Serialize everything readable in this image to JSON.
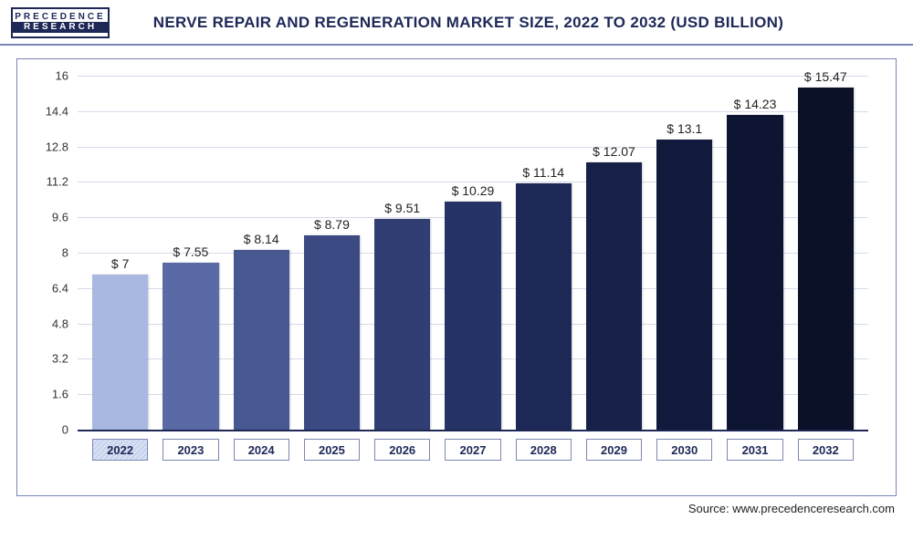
{
  "logo": {
    "top": "PRECEDENCE",
    "bottom": "RESEARCH"
  },
  "title": "NERVE REPAIR AND REGENERATION MARKET SIZE, 2022 TO 2032 (USD BILLION)",
  "source": "Source: www.precedenceresearch.com",
  "chart": {
    "type": "bar",
    "background_color": "#ffffff",
    "grid_color": "#d6dbe8",
    "axis_color": "#1d2857",
    "y": {
      "min": 0,
      "max": 16,
      "ticks": [
        0,
        1.6,
        3.2,
        4.8,
        6.4,
        8,
        9.6,
        11.2,
        12.8,
        14.4,
        16
      ],
      "label_fontsize": 13,
      "label_color": "#333333"
    },
    "bar_width_ratio": 0.78,
    "data_label_fontsize": 14,
    "data_label_color": "#222222",
    "x_box_border_color": "#7c88b4",
    "x_box_text_color": "#1d2857",
    "x_box_fontsize": 13,
    "highlight_year": "2022",
    "bars": [
      {
        "year": "2022",
        "value": 7,
        "label": "$ 7",
        "color": "#a9b8e0"
      },
      {
        "year": "2023",
        "value": 7.55,
        "label": "$ 7.55",
        "color": "#5a6aa6"
      },
      {
        "year": "2024",
        "value": 8.14,
        "label": "$ 8.14",
        "color": "#47578f"
      },
      {
        "year": "2025",
        "value": 8.79,
        "label": "$ 8.79",
        "color": "#3b4a83"
      },
      {
        "year": "2026",
        "value": 9.51,
        "label": "$ 9.51",
        "color": "#303e74"
      },
      {
        "year": "2027",
        "value": 10.29,
        "label": "$ 10.29",
        "color": "#263366"
      },
      {
        "year": "2028",
        "value": 11.14,
        "label": "$ 11.14",
        "color": "#1d2857"
      },
      {
        "year": "2029",
        "value": 12.07,
        "label": "$ 12.07",
        "color": "#162048"
      },
      {
        "year": "2030",
        "value": 13.1,
        "label": "$ 13.1",
        "color": "#111a3c"
      },
      {
        "year": "2031",
        "value": 14.23,
        "label": "$ 14.23",
        "color": "#0d1532"
      },
      {
        "year": "2032",
        "value": 15.47,
        "label": "$ 15.47",
        "color": "#0a1129"
      }
    ]
  }
}
